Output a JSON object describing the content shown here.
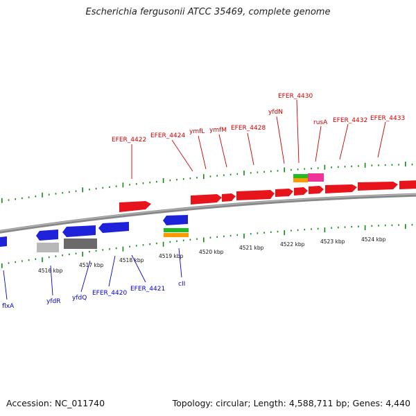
{
  "title": "Escherichia fergusonii ATCC 35469, complete genome",
  "footer": {
    "accession": "Accession: NC_011740",
    "stats": "Topology: circular; Length: 4,588,711 bp; Genes: 4,440"
  },
  "colors": {
    "forward_gene": "#e8141c",
    "reverse_gene": "#1e22d8",
    "pseudo_gene": "#b8b8b8",
    "dark_gene": "#6a6a6a",
    "rna_green": "#22bb22",
    "rna_orange": "#ff9900",
    "rna_pink": "#ee3399",
    "tick": "#118811",
    "backbone": "#7a7a7a",
    "top_label": "#cc0000",
    "bottom_label": "#0000cc"
  },
  "kbp_labels": [
    "4516 kbp",
    "4517 kbp",
    "4518 kbp",
    "4519 kbp",
    "4520 kbp",
    "4521 kbp",
    "4522 kbp",
    "4523 kbp",
    "4524 kbp"
  ],
  "top_labels": [
    "EFER_4422",
    "EFER_4424",
    "ymfL",
    "ymfM",
    "EFER_4428",
    "yfdN",
    "EFER_4430",
    "rusA",
    "EFER_4432",
    "EFER_4433"
  ],
  "bottom_labels": [
    "flxA",
    "yfdR",
    "yfdQ",
    "EFER_4420",
    "EFER_4421",
    "cII"
  ]
}
